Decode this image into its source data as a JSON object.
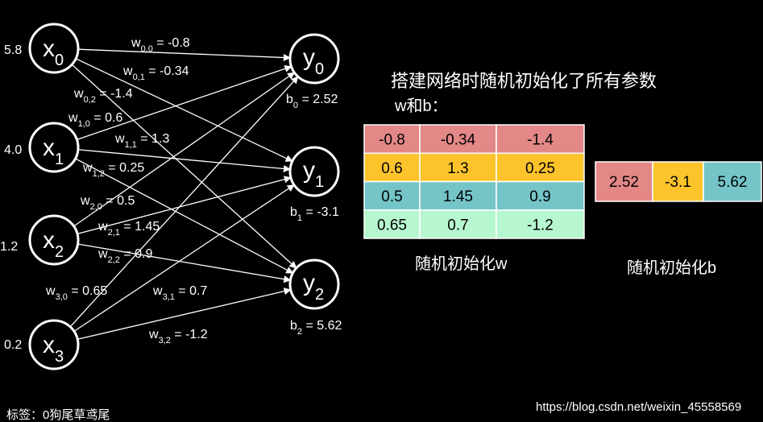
{
  "title": "搭建网络时随机初始化了所有参数",
  "subtitle": "w和b：",
  "inputs": [
    {
      "name": "x",
      "sub": "0",
      "value": "5.8"
    },
    {
      "name": "x",
      "sub": "1",
      "value": "4.0"
    },
    {
      "name": "x",
      "sub": "2",
      "value": "1.2"
    },
    {
      "name": "x",
      "sub": "3",
      "value": "0.2"
    }
  ],
  "outputs": [
    {
      "name": "y",
      "sub": "0",
      "bias_name": "b",
      "bias_sub": "0",
      "bias_text": " = 2.52"
    },
    {
      "name": "y",
      "sub": "1",
      "bias_name": "b",
      "bias_sub": "1",
      "bias_text": " = -3.1"
    },
    {
      "name": "y",
      "sub": "2",
      "bias_name": "b",
      "bias_sub": "2",
      "bias_text": " = 5.62"
    }
  ],
  "weights": [
    {
      "name": "w",
      "sub": "0,0",
      "text": " = -0.8"
    },
    {
      "name": "w",
      "sub": "0,1",
      "text": " = -0.34"
    },
    {
      "name": "w",
      "sub": "0,2",
      "text": " = -1.4"
    },
    {
      "name": "w",
      "sub": "1,0",
      "text": " = 0.6"
    },
    {
      "name": "w",
      "sub": "1,1",
      "text": " = 1.3"
    },
    {
      "name": "w",
      "sub": "1,2",
      "text": " = 0.25"
    },
    {
      "name": "w",
      "sub": "2,0",
      "text": " = 0.5"
    },
    {
      "name": "w",
      "sub": "2,1",
      "text": " = 1.45"
    },
    {
      "name": "w",
      "sub": "2,2",
      "text": " = 0.9"
    },
    {
      "name": "w",
      "sub": "3,0",
      "text": " = 0.65"
    },
    {
      "name": "w",
      "sub": "3,1",
      "text": " = 0.7"
    },
    {
      "name": "w",
      "sub": "3,2",
      "text": " = -1.2"
    }
  ],
  "w_table": {
    "rows": [
      [
        "-0.8",
        "-0.34",
        "-1.4"
      ],
      [
        "0.6",
        "1.3",
        "0.25"
      ],
      [
        "0.5",
        "1.45",
        "0.9"
      ],
      [
        "0.65",
        "0.7",
        "-1.2"
      ]
    ],
    "caption": "随机初始化w"
  },
  "b_table": {
    "cells": [
      "2.52",
      "-3.1",
      "5.62"
    ],
    "caption": "随机初始化b"
  },
  "footer_left": "标签：0狗尾草鸢尾",
  "footer_right": "https://blog.csdn.net/weixin_45558569"
}
